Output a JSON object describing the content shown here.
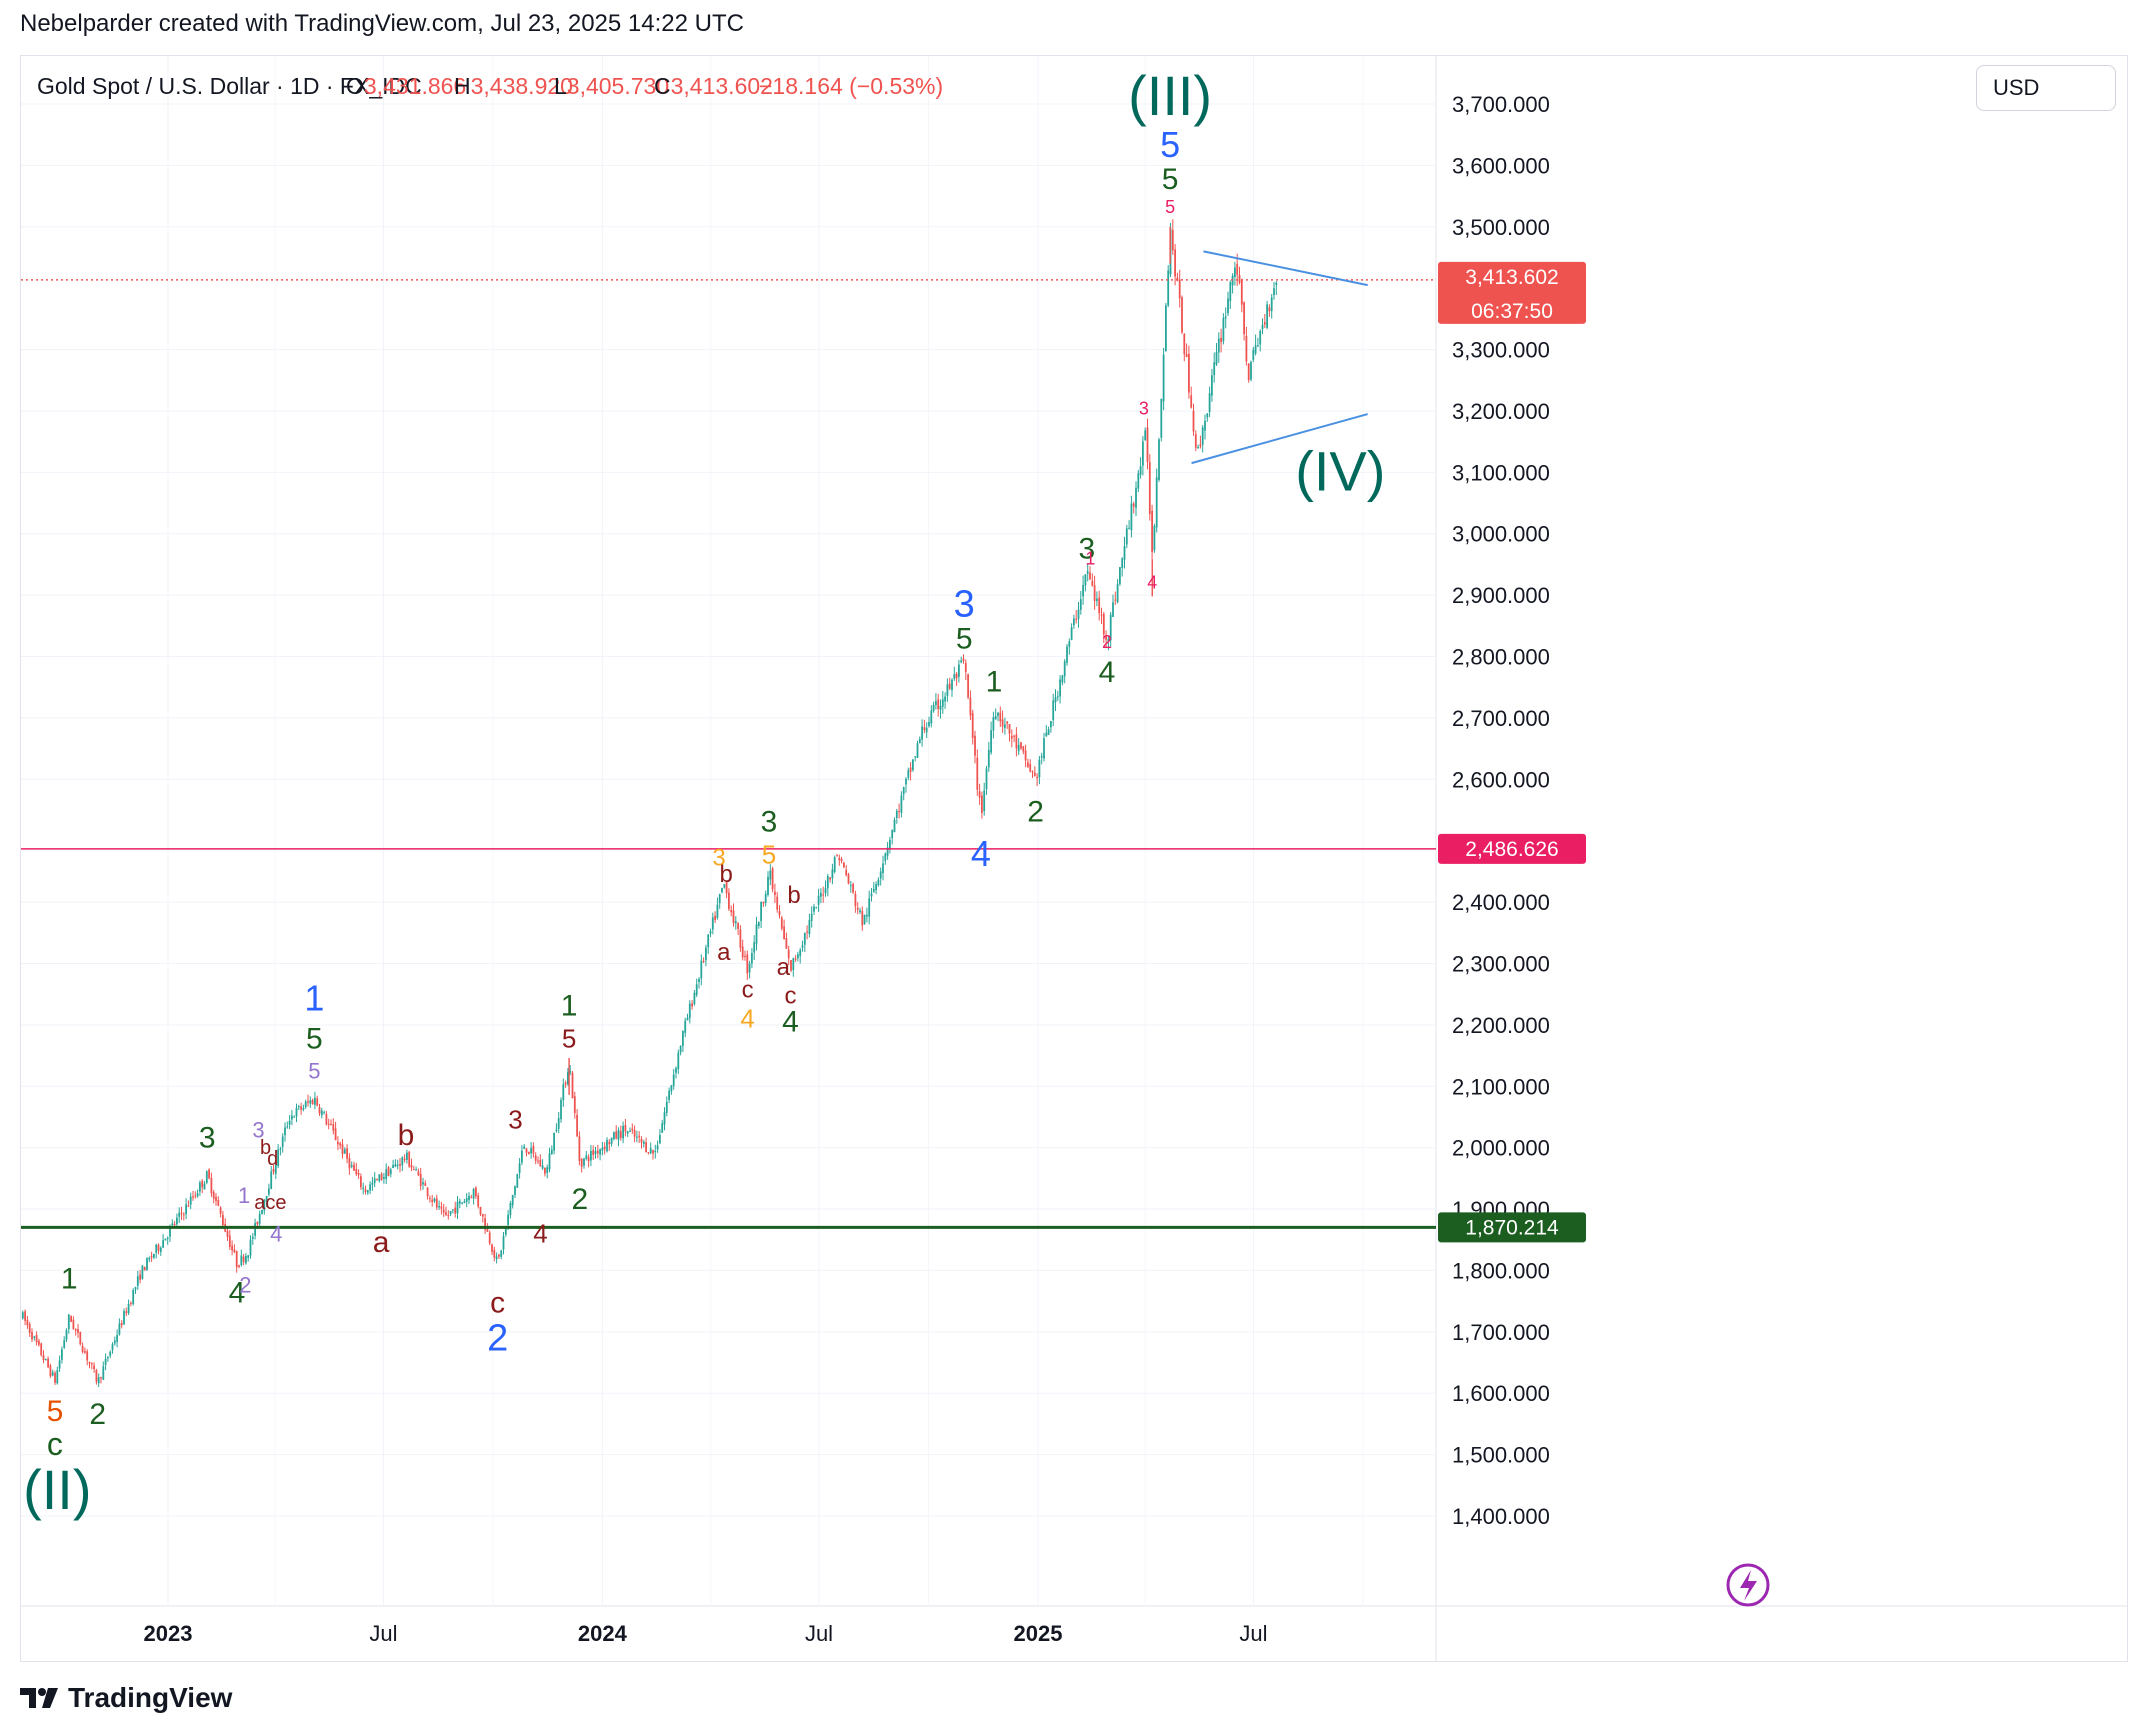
{
  "header": {
    "attribution": "Nebelparder created with TradingView.com, Jul 23, 2025 14:22 UTC"
  },
  "legend": {
    "symbol": "Gold Spot / U.S. Dollar · 1D · FX_IDC",
    "open_label": "O",
    "open": "3,431.866",
    "high_label": "H",
    "high": "3,438.920",
    "low_label": "L",
    "low": "3,405.730",
    "close_label": "C",
    "close": "3,413.602",
    "change": "−18.164 (−0.53%)"
  },
  "currency_button": "USD",
  "price_tags": {
    "last": "3,413.602",
    "countdown": "06:37:50",
    "pink_level": "2,486.626",
    "green_level": "1,870.214"
  },
  "footer": {
    "brand": "TradingView"
  },
  "colors": {
    "up": "#26a69a",
    "down": "#ef5350",
    "pink": "#e91e63",
    "green_line": "#1b5e20",
    "wave_green": "#1b5e20",
    "wave_blue": "#2962ff",
    "wave_teal": "#00695c",
    "wave_red": "#8b1a1a",
    "wave_orange": "#e65100",
    "wave_yellow": "#f9a825",
    "wave_purple": "#9575cd",
    "wave_pink": "#e91e63",
    "triangle": "#4a90e2"
  },
  "chart_data": {
    "type": "candlestick",
    "title": "Gold Spot / U.S. Dollar · 1D · FX_IDC",
    "y_axis": {
      "ticks": [
        "3,700.000",
        "3,600.000",
        "3,500.000",
        "3,300.000",
        "3,200.000",
        "3,100.000",
        "3,000.000",
        "2,900.000",
        "2,800.000",
        "2,700.000",
        "2,600.000",
        "2,400.000",
        "2,300.000",
        "2,200.000",
        "2,100.000",
        "2,000.000",
        "1,900.000",
        "1,800.000",
        "1,700.000",
        "1,600.000",
        "1,500.000",
        "1,400.000"
      ],
      "ylim": [
        1300,
        3800
      ]
    },
    "x_axis": {
      "ticks": [
        "2023",
        "Jul",
        "2024",
        "Jul",
        "2025",
        "Jul"
      ]
    },
    "path_points": [
      [
        "2022-09-01",
        1725
      ],
      [
        "2022-09-28",
        1620
      ],
      [
        "2022-10-10",
        1725
      ],
      [
        "2022-11-03",
        1618
      ],
      [
        "2022-12-10",
        1800
      ],
      [
        "2023-01-15",
        1900
      ],
      [
        "2023-02-03",
        1955
      ],
      [
        "2023-02-28",
        1810
      ],
      [
        "2023-03-09",
        1830
      ],
      [
        "2023-04-13",
        2050
      ],
      [
        "2023-05-04",
        2080
      ],
      [
        "2023-06-15",
        1930
      ],
      [
        "2023-07-20",
        1985
      ],
      [
        "2023-08-21",
        1885
      ],
      [
        "2023-09-15",
        1930
      ],
      [
        "2023-10-05",
        1810
      ],
      [
        "2023-10-27",
        2005
      ],
      [
        "2023-11-15",
        1960
      ],
      [
        "2023-12-04",
        2140
      ],
      [
        "2023-12-13",
        1975
      ],
      [
        "2024-01-20",
        2030
      ],
      [
        "2024-02-14",
        1990
      ],
      [
        "2024-03-08",
        2180
      ],
      [
        "2024-04-12",
        2430
      ],
      [
        "2024-05-02",
        2290
      ],
      [
        "2024-05-20",
        2450
      ],
      [
        "2024-06-07",
        2290
      ],
      [
        "2024-07-17",
        2480
      ],
      [
        "2024-08-07",
        2365
      ],
      [
        "2024-09-26",
        2680
      ],
      [
        "2024-10-31",
        2790
      ],
      [
        "2024-11-14",
        2540
      ],
      [
        "2024-11-25",
        2720
      ],
      [
        "2024-12-30",
        2600
      ],
      [
        "2025-02-11",
        2940
      ],
      [
        "2025-02-28",
        2830
      ],
      [
        "2025-04-02",
        3165
      ],
      [
        "2025-04-07",
        2960
      ],
      [
        "2025-04-22",
        3500
      ],
      [
        "2025-05-15",
        3125
      ],
      [
        "2025-06-16",
        3450
      ],
      [
        "2025-06-27",
        3260
      ],
      [
        "2025-07-22",
        3430
      ]
    ],
    "horizontal_levels": [
      {
        "name": "last-price",
        "value": 3413.602,
        "style": "dotted",
        "color": "#ef5350"
      },
      {
        "name": "pink-level",
        "value": 2486.626,
        "style": "solid",
        "color": "#e91e63"
      },
      {
        "name": "green-level",
        "value": 1870.214,
        "style": "solid",
        "color": "#1b5e20"
      }
    ],
    "triangle_lines": [
      {
        "name": "triangle-upper",
        "from": [
          "2025-05-20",
          3460
        ],
        "to": [
          "2025-10-05",
          3405
        ]
      },
      {
        "name": "triangle-lower",
        "from": [
          "2025-05-10",
          3115
        ],
        "to": [
          "2025-10-05",
          3195
        ]
      }
    ],
    "wave_labels": [
      {
        "t": "1",
        "d": "2022-10-10",
        "p": 1725,
        "c": "wave_green",
        "s": 30,
        "dy": -28
      },
      {
        "t": "5",
        "d": "2022-09-28",
        "p": 1620,
        "c": "wave_orange",
        "s": 30,
        "dy": 40
      },
      {
        "t": "c",
        "d": "2022-09-28",
        "p": 1620,
        "c": "wave_green",
        "s": 32,
        "dy": 74
      },
      {
        "t": "(II)",
        "d": "2022-09-30",
        "p": 1620,
        "c": "wave_teal",
        "s": 56,
        "dy": 128
      },
      {
        "t": "2",
        "d": "2022-11-03",
        "p": 1618,
        "c": "wave_green",
        "s": 30,
        "dy": 42
      },
      {
        "t": "3",
        "d": "2023-02-03",
        "p": 1955,
        "c": "wave_green",
        "s": 30,
        "dy": -28
      },
      {
        "t": "4",
        "d": "2023-02-28",
        "p": 1810,
        "c": "wave_green",
        "s": 30,
        "dy": 38
      },
      {
        "t": "2",
        "d": "2023-03-07",
        "p": 1810,
        "c": "wave_purple",
        "s": 22,
        "dy": 28
      },
      {
        "t": "1",
        "d": "2023-03-06",
        "p": 1900,
        "c": "wave_purple",
        "s": 22,
        "dy": -6
      },
      {
        "t": "3",
        "d": "2023-03-18",
        "p": 2010,
        "c": "wave_purple",
        "s": 22,
        "dy": -4
      },
      {
        "t": "b",
        "d": "2023-03-24",
        "p": 1990,
        "c": "wave_red",
        "s": 20,
        "dy": 0
      },
      {
        "t": "d",
        "d": "2023-03-30",
        "p": 1978,
        "c": "wave_red",
        "s": 20,
        "dy": 4
      },
      {
        "t": "ace",
        "d": "2023-03-28",
        "p": 1920,
        "c": "wave_red",
        "s": 20,
        "dy": 12
      },
      {
        "t": "4",
        "d": "2023-04-02",
        "p": 1880,
        "c": "wave_purple",
        "s": 22,
        "dy": 20
      },
      {
        "t": "5",
        "d": "2023-05-04",
        "p": 2080,
        "c": "wave_purple",
        "s": 22,
        "dy": -20
      },
      {
        "t": "5",
        "d": "2023-05-04",
        "p": 2080,
        "c": "wave_green",
        "s": 30,
        "dy": -50
      },
      {
        "t": "1",
        "d": "2023-05-04",
        "p": 2080,
        "c": "wave_blue",
        "s": 36,
        "dy": -88
      },
      {
        "t": "b",
        "d": "2023-07-20",
        "p": 1985,
        "c": "wave_red",
        "s": 30,
        "dy": -12
      },
      {
        "t": "a",
        "d": "2023-06-29",
        "p": 1895,
        "c": "wave_red",
        "s": 30,
        "dy": 40
      },
      {
        "t": "c",
        "d": "2023-10-05",
        "p": 1810,
        "c": "wave_red",
        "s": 30,
        "dy": 48
      },
      {
        "t": "2",
        "d": "2023-10-05",
        "p": 1810,
        "c": "wave_blue",
        "s": 38,
        "dy": 86
      },
      {
        "t": "3",
        "d": "2023-10-20",
        "p": 2005,
        "c": "wave_red",
        "s": 26,
        "dy": -16
      },
      {
        "t": "4",
        "d": "2023-11-10",
        "p": 1930,
        "c": "wave_red",
        "s": 26,
        "dy": 52
      },
      {
        "t": "5",
        "d": "2023-12-04",
        "p": 2140,
        "c": "wave_red",
        "s": 26,
        "dy": -14
      },
      {
        "t": "1",
        "d": "2023-12-04",
        "p": 2140,
        "c": "wave_green",
        "s": 30,
        "dy": -46
      },
      {
        "t": "2",
        "d": "2023-12-13",
        "p": 1975,
        "c": "wave_green",
        "s": 30,
        "dy": 46
      },
      {
        "t": "3",
        "d": "2024-04-08",
        "p": 2430,
        "c": "wave_yellow",
        "s": 24,
        "dy": -18
      },
      {
        "t": "b",
        "d": "2024-04-14",
        "p": 2420,
        "c": "wave_red",
        "s": 24,
        "dy": -8
      },
      {
        "t": "a",
        "d": "2024-04-12",
        "p": 2345,
        "c": "wave_red",
        "s": 24,
        "dy": 24
      },
      {
        "t": "c",
        "d": "2024-05-02",
        "p": 2290,
        "c": "wave_red",
        "s": 24,
        "dy": 28
      },
      {
        "t": "4",
        "d": "2024-05-02",
        "p": 2290,
        "c": "wave_yellow",
        "s": 26,
        "dy": 58
      },
      {
        "t": "5",
        "d": "2024-05-20",
        "p": 2450,
        "c": "wave_yellow",
        "s": 26,
        "dy": -8
      },
      {
        "t": "3",
        "d": "2024-05-20",
        "p": 2450,
        "c": "wave_green",
        "s": 30,
        "dy": -40
      },
      {
        "t": "b",
        "d": "2024-06-10",
        "p": 2395,
        "c": "wave_red",
        "s": 24,
        "dy": -2
      },
      {
        "t": "a",
        "d": "2024-06-01",
        "p": 2320,
        "c": "wave_red",
        "s": 24,
        "dy": 24
      },
      {
        "t": "c",
        "d": "2024-06-07",
        "p": 2290,
        "c": "wave_red",
        "s": 24,
        "dy": 34
      },
      {
        "t": "4",
        "d": "2024-06-07",
        "p": 2290,
        "c": "wave_green",
        "s": 30,
        "dy": 62
      },
      {
        "t": "5",
        "d": "2024-10-31",
        "p": 2790,
        "c": "wave_green",
        "s": 30,
        "dy": -14
      },
      {
        "t": "3",
        "d": "2024-10-31",
        "p": 2790,
        "c": "wave_blue",
        "s": 38,
        "dy": -46
      },
      {
        "t": "4",
        "d": "2024-11-14",
        "p": 2540,
        "c": "wave_blue",
        "s": 36,
        "dy": 50
      },
      {
        "t": "1",
        "d": "2024-11-25",
        "p": 2720,
        "c": "wave_green",
        "s": 30,
        "dy": -14
      },
      {
        "t": "2",
        "d": "2024-12-30",
        "p": 2600,
        "c": "wave_green",
        "s": 30,
        "dy": 42
      },
      {
        "t": "3",
        "d": "2025-02-11",
        "p": 2940,
        "c": "wave_green",
        "s": 30,
        "dy": -12
      },
      {
        "t": "1",
        "d": "2025-02-14",
        "p": 2930,
        "c": "wave_pink",
        "s": 18,
        "dy": -12
      },
      {
        "t": "2",
        "d": "2025-02-28",
        "p": 2830,
        "c": "wave_pink",
        "s": 18,
        "dy": 10
      },
      {
        "t": "4",
        "d": "2025-02-28",
        "p": 2830,
        "c": "wave_green",
        "s": 30,
        "dy": 44
      },
      {
        "t": "3",
        "d": "2025-03-31",
        "p": 3165,
        "c": "wave_pink",
        "s": 18,
        "dy": -18
      },
      {
        "t": "4",
        "d": "2025-04-07",
        "p": 2960,
        "c": "wave_pink",
        "s": 18,
        "dy": 30
      },
      {
        "t": "5",
        "d": "2025-04-22",
        "p": 3500,
        "c": "wave_pink",
        "s": 18,
        "dy": -14
      },
      {
        "t": "5",
        "d": "2025-04-22",
        "p": 3500,
        "c": "wave_green",
        "s": 30,
        "dy": -38
      },
      {
        "t": "5",
        "d": "2025-04-22",
        "p": 3500,
        "c": "wave_blue",
        "s": 36,
        "dy": -70
      },
      {
        "t": "(III)",
        "d": "2025-04-22",
        "p": 3500,
        "c": "wave_teal",
        "s": 56,
        "dy": -112
      },
      {
        "t": "(IV)",
        "d": "2025-09-12",
        "p": 3100,
        "c": "wave_teal",
        "s": 56,
        "dy": 18
      }
    ]
  }
}
